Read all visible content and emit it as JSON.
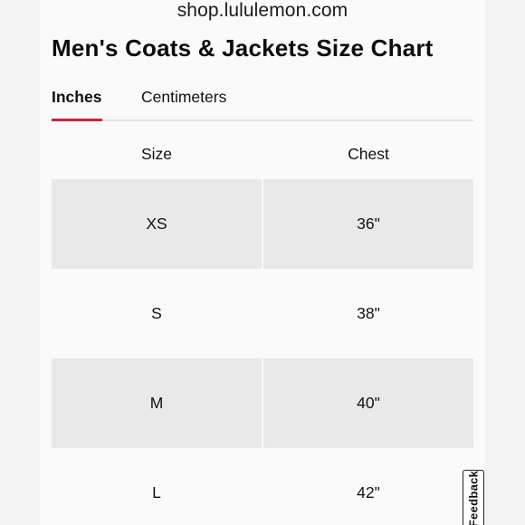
{
  "url_bar": {
    "text": "shop.lululemon.com"
  },
  "page": {
    "title": "Men's Coats & Jackets Size Chart"
  },
  "tabs": [
    {
      "label": "Inches",
      "active": true
    },
    {
      "label": "Centimeters",
      "active": false
    }
  ],
  "colors": {
    "accent_underline": "#d31e38",
    "row_shade": "#e9e9e9"
  },
  "table": {
    "headers": [
      "Size",
      "Chest"
    ],
    "rows": [
      {
        "size": "XS",
        "chest": "36\""
      },
      {
        "size": "S",
        "chest": "38\""
      },
      {
        "size": "M",
        "chest": "40\""
      },
      {
        "size": "L",
        "chest": "42\""
      }
    ]
  },
  "feedback": {
    "label": "Feedback"
  }
}
